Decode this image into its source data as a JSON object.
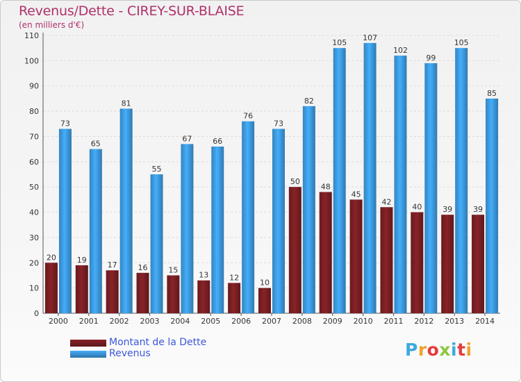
{
  "header": {
    "title": "Revenus/Dette - CIREY-SUR-BLAISE",
    "subtitle": "(en milliers d'€)"
  },
  "brand": {
    "text": "Proxiti",
    "letter_colors": [
      "#3fa9e0",
      "#f0a12d",
      "#e23d3d",
      "#8dc63f",
      "#3fa9e0",
      "#e23d3d",
      "#f0a12d"
    ]
  },
  "legend": {
    "items": [
      {
        "label": "Montant de la Dette",
        "color": "#7a1f24"
      },
      {
        "label": "Revenus",
        "color": "#3d9be0"
      }
    ]
  },
  "chart_data": {
    "type": "bar",
    "title": "Revenus/Dette - CIREY-SUR-BLAISE",
    "subtitle": "(en milliers d'€)",
    "xlabel": "",
    "ylabel": "",
    "categories": [
      "2000",
      "2001",
      "2002",
      "2003",
      "2004",
      "2005",
      "2006",
      "2007",
      "2008",
      "2009",
      "2010",
      "2011",
      "2012",
      "2013",
      "2014"
    ],
    "series": [
      {
        "name": "Montant de la Dette",
        "color": "#7a1f24",
        "values": [
          20,
          19,
          17,
          16,
          15,
          13,
          12,
          10,
          50,
          48,
          45,
          42,
          40,
          39,
          39
        ]
      },
      {
        "name": "Revenus",
        "color": "#3d9be0",
        "values": [
          73,
          65,
          81,
          55,
          67,
          66,
          76,
          73,
          82,
          105,
          107,
          102,
          99,
          105,
          85
        ]
      }
    ],
    "ylim": [
      0,
      110
    ],
    "yticks": [
      0,
      10,
      20,
      30,
      40,
      50,
      60,
      70,
      80,
      90,
      100,
      110
    ],
    "grid": true,
    "legend_position": "bottom-left",
    "data_labels": true
  }
}
